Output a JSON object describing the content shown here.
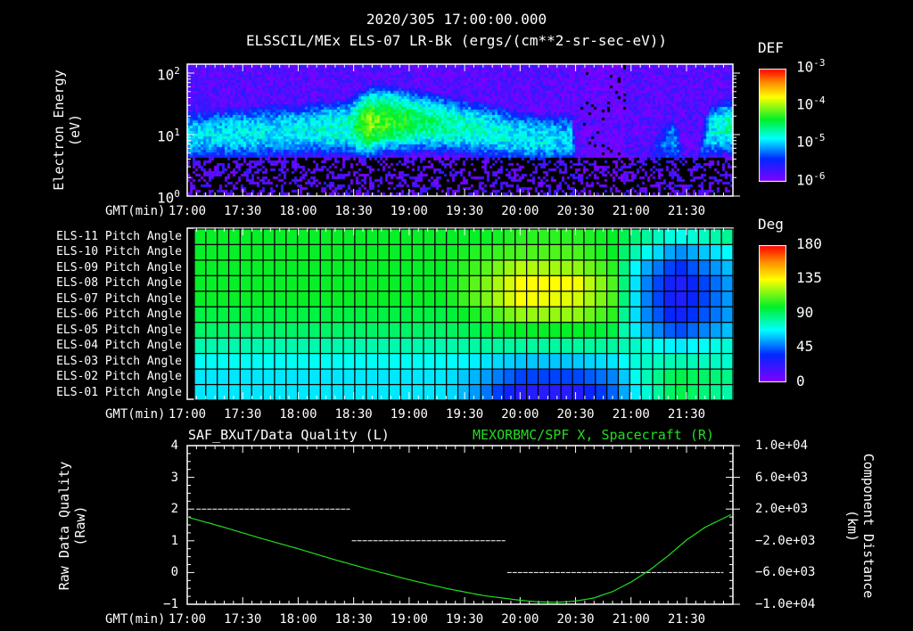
{
  "header": {
    "title": "2020/305 17:00:00.000",
    "subtitle": "ELSSCIL/MEx ELS-07 LR-Bk  (ergs/(cm**2-sr-sec-eV))"
  },
  "colors": {
    "background": "#000000",
    "axis": "#ffffff",
    "green_series": "#22dd22"
  },
  "chart_data": [
    {
      "type": "heatmap",
      "name": "energy-spectrogram",
      "ylabel": "Electron Energy",
      "yunits": "(eV)",
      "yscale": "log",
      "ylim": [
        1,
        138
      ],
      "yticks": [
        "10",
        "10",
        "10"
      ],
      "ytick_exponents": [
        "0",
        "1",
        "2"
      ],
      "xlabel": "GMT(min)",
      "xticks": [
        "17:00",
        "17:30",
        "18:00",
        "18:30",
        "19:00",
        "19:30",
        "20:00",
        "20:30",
        "21:00",
        "21:30"
      ],
      "xlim_min": [
        0,
        294
      ],
      "colorbar": {
        "label": "DEF",
        "ticks": [
          "10",
          "10",
          "10",
          "10"
        ],
        "tick_exponents": [
          "-3",
          "-4",
          "-5",
          "-6"
        ],
        "range_log": [
          -6.2,
          -3
        ]
      },
      "band_min": [
        0,
        30,
        60,
        90,
        100,
        110,
        130,
        150,
        165,
        185,
        200,
        210,
        215,
        225,
        240,
        265,
        275,
        285,
        294
      ],
      "band_center_eV": [
        10,
        11,
        12,
        14,
        16,
        18,
        17,
        14,
        12,
        9,
        9,
        9,
        0,
        0,
        0,
        9,
        0,
        12,
        14
      ],
      "band_peak_logDEF": [
        -5.1,
        -5.0,
        -5.0,
        -4.8,
        -4.1,
        -4.3,
        -4.6,
        -4.8,
        -4.9,
        -5.0,
        -5.1,
        -5.1,
        -6.5,
        -6.5,
        -6.5,
        -5.2,
        -6.3,
        -5.0,
        -4.8
      ]
    },
    {
      "type": "heatmap",
      "name": "pitch-angle",
      "rows": [
        "ELS-11 Pitch Angle",
        "ELS-10 Pitch Angle",
        "ELS-09 Pitch Angle",
        "ELS-08 Pitch Angle",
        "ELS-07 Pitch Angle",
        "ELS-06 Pitch Angle",
        "ELS-05 Pitch Angle",
        "ELS-04 Pitch Angle",
        "ELS-03 Pitch Angle",
        "ELS-02 Pitch Angle",
        "ELS-01 Pitch Angle"
      ],
      "xlabel": "GMT(min)",
      "xticks": [
        "17:00",
        "17:30",
        "18:00",
        "18:30",
        "19:00",
        "19:30",
        "20:00",
        "20:30",
        "21:00",
        "21:30"
      ],
      "colorbar": {
        "label": "Deg",
        "ticks": [
          "180",
          "135",
          "90",
          "45",
          "0"
        ],
        "range": [
          0,
          180
        ]
      },
      "time_min": [
        0,
        140,
        160,
        180,
        210,
        230,
        245,
        265,
        294
      ],
      "values_deg": [
        [
          100,
          100,
          100,
          105,
          105,
          100,
          85,
          70,
          85
        ],
        [
          100,
          100,
          105,
          110,
          110,
          100,
          75,
          50,
          70
        ],
        [
          100,
          100,
          110,
          125,
          120,
          105,
          60,
          35,
          60
        ],
        [
          100,
          100,
          115,
          135,
          135,
          110,
          55,
          25,
          55
        ],
        [
          100,
          100,
          115,
          135,
          130,
          110,
          55,
          25,
          55
        ],
        [
          95,
          95,
          105,
          120,
          120,
          105,
          55,
          30,
          55
        ],
        [
          90,
          90,
          95,
          100,
          100,
          95,
          60,
          40,
          60
        ],
        [
          80,
          80,
          82,
          82,
          82,
          82,
          75,
          65,
          75
        ],
        [
          70,
          70,
          65,
          60,
          60,
          65,
          75,
          80,
          75
        ],
        [
          65,
          65,
          55,
          40,
          40,
          50,
          75,
          95,
          85
        ],
        [
          65,
          65,
          50,
          25,
          25,
          45,
          70,
          95,
          80
        ]
      ]
    },
    {
      "type": "line",
      "name": "quality-and-position",
      "title_left": "SAF_BXuT/Data Quality (L)",
      "title_right": "MEXORBMC/SPF X, Spacecraft (R)",
      "ylabel_left": "Raw Data Quality",
      "yunits_left": "(Raw)",
      "ylim_left": [
        -1,
        4
      ],
      "yticks_left": [
        "4",
        "3",
        "2",
        "1",
        "0",
        "−1"
      ],
      "ylabel_right": "Component Distance",
      "yunits_right": "(km)",
      "ylim_right": [
        -10000,
        10000
      ],
      "yticks_right": [
        "1.0e+04",
        "6.0e+03",
        "2.0e+03",
        "−2.0e+03",
        "−6.0e+03",
        "−1.0e+04"
      ],
      "xlabel": "GMT(min)",
      "xticks": [
        "17:00",
        "17:30",
        "18:00",
        "18:30",
        "19:00",
        "19:30",
        "20:00",
        "20:30",
        "21:00",
        "21:30"
      ],
      "series": [
        {
          "name": "Data Quality",
          "axis": "left",
          "segments": [
            {
              "x": [
                5,
                88
              ],
              "y": 2
            },
            {
              "x": [
                89,
                172
              ],
              "y": 1
            },
            {
              "x": [
                173,
                290
              ],
              "y": 0
            }
          ]
        },
        {
          "name": "SPF X",
          "axis": "right",
          "x": [
            0,
            20,
            40,
            60,
            80,
            100,
            120,
            140,
            160,
            180,
            190,
            200,
            210,
            220,
            230,
            240,
            250,
            260,
            270,
            280,
            294
          ],
          "y": [
            1000,
            -300,
            -1700,
            -3000,
            -4400,
            -5700,
            -6900,
            -8000,
            -8900,
            -9500,
            -9700,
            -9750,
            -9600,
            -9200,
            -8400,
            -7200,
            -5700,
            -3900,
            -1900,
            -300,
            1300
          ]
        }
      ]
    }
  ]
}
